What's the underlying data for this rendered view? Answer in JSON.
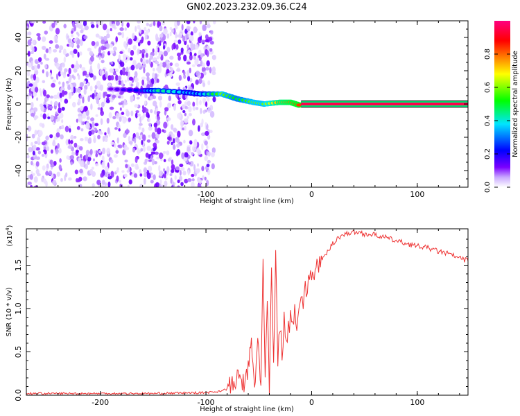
{
  "title": "GN02.2023.232.09.36.C24",
  "spectrogram": {
    "type": "heatmap",
    "xlabel": "Height of straight line (km)",
    "ylabel": "Frequency (Hz)",
    "xlim": [
      -270,
      148
    ],
    "ylim": [
      -50,
      50
    ],
    "xticks": [
      -200,
      -100,
      0,
      100
    ],
    "yticks": [
      -40,
      -20,
      0,
      20,
      40
    ],
    "noise_extent_x": [
      -270,
      -92
    ],
    "ridge": [
      {
        "x": -190,
        "f": 9,
        "a": 0.12
      },
      {
        "x": -160,
        "f": 8,
        "a": 0.25
      },
      {
        "x": -145,
        "f": 8,
        "a": 0.45
      },
      {
        "x": -120,
        "f": 7,
        "a": 0.35
      },
      {
        "x": -105,
        "f": 6,
        "a": 0.35
      },
      {
        "x": -85,
        "f": 6,
        "a": 0.6
      },
      {
        "x": -70,
        "f": 3,
        "a": 0.5
      },
      {
        "x": -55,
        "f": 1,
        "a": 0.6
      },
      {
        "x": -45,
        "f": 0,
        "a": 0.6
      },
      {
        "x": -30,
        "f": 1,
        "a": 0.75
      },
      {
        "x": -20,
        "f": 1,
        "a": 0.8
      },
      {
        "x": -10,
        "f": -1,
        "a": 0.85
      }
    ],
    "steady_line": {
      "x_start": -10,
      "x_end": 148,
      "f": 0,
      "a": 0.95
    }
  },
  "colorbar": {
    "label": "Normalized spectral amplitude",
    "ticks": [
      0.0,
      0.2,
      0.4,
      0.6,
      0.8
    ],
    "tick_labels": [
      "0.0",
      "0.2",
      "0.4",
      "0.6",
      "0.8"
    ],
    "range": [
      0,
      1
    ],
    "colors": [
      "#ffffff",
      "#6a00ff",
      "#0000ff",
      "#00e5ff",
      "#00ff00",
      "#ffff00",
      "#ff8000",
      "#ff0000",
      "#ff0080"
    ]
  },
  "chart_data": {
    "type": "line",
    "xlabel": "Height of straight line (km)",
    "ylabel": "SNR (10 * v/v)",
    "scale_label": "(x10",
    "scale_exp": "4",
    "scale_close": ")",
    "xlim": [
      -270,
      148
    ],
    "ylim": [
      0,
      1.92
    ],
    "xticks": [
      -200,
      -100,
      0,
      100
    ],
    "yticks": [
      0.0,
      0.5,
      1.0,
      1.5
    ],
    "ytick_labels": [
      "0.0",
      "0.5",
      "1.0",
      "1.5"
    ],
    "color": "#ee3333",
    "series": [
      {
        "x": [
          -270,
          -230,
          -200,
          -150,
          -100,
          -90,
          -80,
          -72,
          -68,
          -64,
          -60,
          -57,
          -54,
          -51,
          -48,
          -46,
          -44,
          -42,
          -40,
          -38,
          -36,
          -34,
          -32,
          -30,
          -28,
          -26,
          -24,
          -22,
          -20,
          -18,
          -16,
          -14,
          -12,
          -10,
          -8,
          -6,
          -4,
          -2,
          0,
          5,
          10,
          15,
          20,
          25,
          30,
          35,
          40,
          45,
          50,
          60,
          70,
          80,
          90,
          100,
          110,
          120,
          130,
          140,
          148
        ],
        "y": [
          0.02,
          0.02,
          0.02,
          0.02,
          0.03,
          0.04,
          0.07,
          0.15,
          0.22,
          0.12,
          0.3,
          0.6,
          0.05,
          0.7,
          0.12,
          1.5,
          0.2,
          1.05,
          0.05,
          1.45,
          0.3,
          1.62,
          0.4,
          0.8,
          0.5,
          0.85,
          0.7,
          0.75,
          0.9,
          0.8,
          1.0,
          0.85,
          1.05,
          1.2,
          1.0,
          1.3,
          1.15,
          1.4,
          1.35,
          1.5,
          1.55,
          1.65,
          1.75,
          1.82,
          1.85,
          1.87,
          1.88,
          1.88,
          1.86,
          1.85,
          1.82,
          1.78,
          1.75,
          1.72,
          1.7,
          1.66,
          1.63,
          1.58,
          1.55
        ]
      }
    ]
  }
}
